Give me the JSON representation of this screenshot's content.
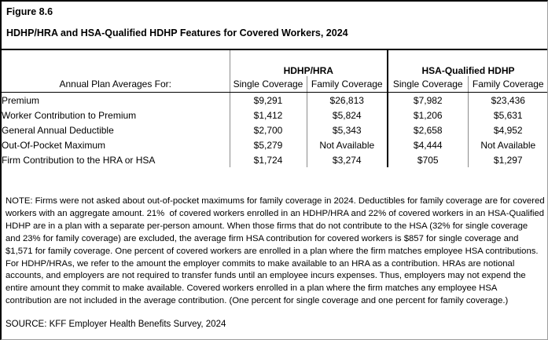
{
  "figure": {
    "label": "Figure 8.6",
    "title": "HDHP/HRA and HSA-Qualified HDHP Features for Covered Workers, 2024"
  },
  "table": {
    "row_header_label": "Annual Plan Averages For:",
    "groups": [
      {
        "label": "HDHP/HRA"
      },
      {
        "label": "HSA-Qualified HDHP"
      }
    ],
    "sub_headers": [
      "Single Coverage",
      "Family Coverage",
      "Single Coverage",
      "Family Coverage"
    ],
    "rows": [
      {
        "label": "Premium",
        "values": [
          "$9,291",
          "$26,813",
          "$7,982",
          "$23,436"
        ]
      },
      {
        "label": "Worker Contribution to Premium",
        "values": [
          "$1,412",
          "$5,824",
          "$1,206",
          "$5,631"
        ]
      },
      {
        "label": "General Annual Deductible",
        "values": [
          "$2,700",
          "$5,343",
          "$2,658",
          "$4,952"
        ]
      },
      {
        "label": "Out-Of-Pocket Maximum",
        "values": [
          "$5,279",
          "Not Available",
          "$4,444",
          "Not Available"
        ]
      },
      {
        "label": "Firm Contribution to the HRA or HSA",
        "values": [
          "$1,724",
          "$3,274",
          "$705",
          "$1,297"
        ]
      }
    ]
  },
  "note": "NOTE: Firms were not asked about out-of-pocket maximums for family coverage in 2024. Deductibles for family coverage are for covered workers with an aggregate amount. 21%  of covered workers enrolled in an HDHP/HRA and 22% of covered workers in an HSA-Qualified HDHP are in a plan with a separate per-person amount. When those firms that do not contribute to the HSA (32% for single coverage and 23% for family coverage) are excluded, the average firm HSA contribution for covered workers is $857 for single coverage and $1,571 for family coverage. One percent of covered workers are enrolled in a plan where the firm matches employee HSA contributions. For HDHP/HRAs, we refer to the amount the employer commits to make available to an HRA as a contribution. HRAs are notional accounts, and employers are not required to transfer funds until an employee incurs expenses. Thus, employers may not expend the entire amount they commit to make available. Covered workers enrolled in a plan where the firm matches any employee HSA contribution are not included in the average contribution. (One percent for single coverage and one percent for family coverage.)",
  "source": "SOURCE: KFF Employer Health Benefits Survey, 2024",
  "colors": {
    "background": "#ffffff",
    "text": "#000000",
    "major_border": "#000000",
    "column_divider": "#8c8c8c"
  }
}
